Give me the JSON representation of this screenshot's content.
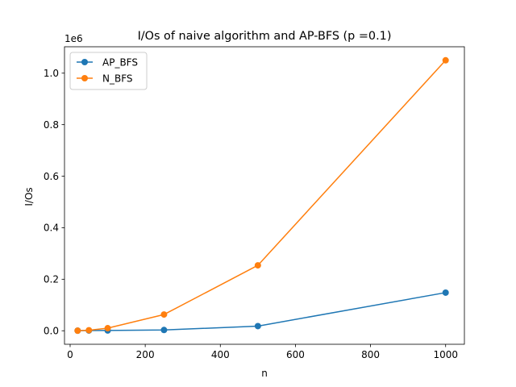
{
  "chart_data": {
    "type": "line",
    "title": "I/Os of naive algorithm and AP-BFS (p =0.1)",
    "xlabel": "n",
    "ylabel": "I/Os",
    "y_offset_label": "1e6",
    "xlim": [
      -15,
      1050
    ],
    "ylim": [
      -0.0525,
      1.1025
    ],
    "x_ticks": [
      0,
      200,
      400,
      600,
      800,
      1000
    ],
    "x_tick_labels": [
      "0",
      "200",
      "400",
      "600",
      "800",
      "1000"
    ],
    "y_ticks": [
      0.0,
      0.2,
      0.4,
      0.6,
      0.8,
      1.0
    ],
    "y_tick_labels": [
      "0.0",
      "0.2",
      "0.4",
      "0.6",
      "0.8",
      "1.0"
    ],
    "grid": false,
    "legend_position": "upper-left",
    "series": [
      {
        "name": "AP_BFS",
        "color": "#1f77b4",
        "marker": "circle",
        "x": [
          20,
          50,
          100,
          250,
          500,
          1000
        ],
        "y": [
          0.0003,
          0.0008,
          0.001,
          0.003,
          0.018,
          0.148
        ]
      },
      {
        "name": "N_BFS",
        "color": "#ff7f0e",
        "marker": "circle",
        "x": [
          20,
          50,
          100,
          250,
          500,
          1000
        ],
        "y": [
          0.0003,
          0.002,
          0.01,
          0.063,
          0.254,
          1.05
        ]
      }
    ]
  }
}
